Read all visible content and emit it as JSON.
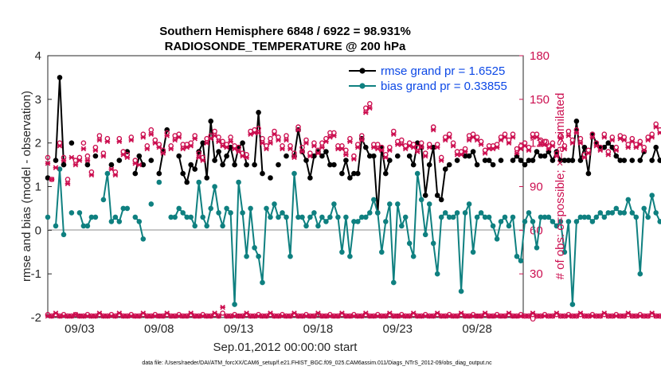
{
  "title_line1": "Southern Hemisphere 6848 / 6922 = 98.931%",
  "title_line2": "RADIOSONDE_TEMPERATURE @ 200 hPa",
  "xlabel": "Sep.01,2012 00:00:00 start",
  "ylabel_left": "rmse and bias (model - observation)",
  "ylabel_right": "# of obs: o=possible; ×=assimilated",
  "footnote": "data file: /Users/raeder/DAI/ATM_forcXX/CAM6_setup/f.e21.FHIST_BGC.f09_025.CAM6assim.011/Diags_NTrS_2012-09/obs_diag_output.nc",
  "legend": {
    "rmse_label": "rmse grand pr = 1.6525",
    "bias_label": "bias grand pr = 0.33855"
  },
  "colors": {
    "rmse": "#000000",
    "bias": "#0f8080",
    "count": "#cc0f50",
    "zero_line": "#b4b4b4"
  },
  "chart_data": {
    "type": "line",
    "x_start_day": 1.0,
    "x_step_days": 0.25,
    "xticks": [
      3,
      8,
      13,
      18,
      23,
      28
    ],
    "xticklabels": [
      "09/03",
      "09/08",
      "09/13",
      "09/18",
      "09/23",
      "09/28"
    ],
    "xlim": [
      1.0,
      30.9
    ],
    "ylim": [
      -2,
      4
    ],
    "yticks": [
      -2,
      -1,
      0,
      1,
      2,
      3,
      4
    ],
    "y2lim": [
      0,
      180
    ],
    "y2ticks": [
      0,
      30,
      60,
      90,
      120,
      150,
      180
    ],
    "series": [
      {
        "name": "rmse grand pr = 1.6525",
        "axis": "left",
        "values": [
          1.2,
          null,
          1.6,
          3.5,
          1.5,
          null,
          2.0,
          null,
          null,
          null,
          1.5,
          null,
          1.7,
          null,
          null,
          null,
          1.5,
          null,
          1.6,
          null,
          1.8,
          null,
          1.3,
          1.7,
          1.5,
          null,
          1.6,
          null,
          1.3,
          1.8,
          2.3,
          null,
          null,
          1.7,
          1.3,
          1.1,
          1.5,
          1.4,
          1.8,
          2.0,
          1.2,
          2.5,
          1.6,
          1.8,
          1.5,
          1.7,
          1.9,
          1.5,
          1.9,
          2.0,
          1.5,
          null,
          1.5,
          2.7,
          1.3,
          null,
          1.2,
          null,
          1.5,
          null,
          1.7,
          null,
          1.7,
          2.3,
          1.8,
          1.6,
          1.2,
          1.7,
          1.8,
          1.7,
          1.8,
          1.5,
          1.5,
          null,
          1.3,
          1.6,
          1.2,
          1.3,
          1.3,
          2.1,
          1.9,
          1.7,
          1.7,
          0.4,
          1.9,
          1.3,
          1.6,
          null,
          1.7,
          null,
          null,
          1.7,
          1.5,
          2.0,
          1.9,
          0.8,
          1.5,
          1.9,
          0.8,
          0.7,
          1.4,
          1.5,
          null,
          1.6,
          null,
          1.7,
          1.7,
          1.8,
          1.5,
          null,
          1.6,
          1.6,
          1.5,
          null,
          1.6,
          null,
          null,
          1.6,
          1.7,
          1.6,
          1.5,
          1.6,
          1.6,
          1.8,
          1.7,
          1.7,
          1.8,
          1.6,
          1.8,
          1.6,
          1.6,
          1.6,
          1.6,
          2.5,
          1.6,
          1.9,
          1.3,
          2.2,
          2.0,
          1.9,
          1.9,
          2.0,
          1.9,
          1.7,
          1.6,
          1.6,
          null,
          1.6,
          null,
          1.6,
          1.8,
          null,
          1.6,
          1.9,
          1.6,
          1.6,
          2.2,
          1.6,
          1.6,
          2.0,
          2.0,
          1.9,
          1.6,
          2.3,
          1.6,
          1.6,
          1.9,
          1.7,
          1.6,
          1.6,
          2.0,
          1.6,
          1.6,
          1.6,
          1.6,
          1.7,
          2.0,
          1.8,
          1.9,
          1.6,
          1.9,
          1.9,
          2.0,
          1.9,
          1.8,
          2.0,
          1.9,
          2.0,
          2.0,
          1.9,
          2.0,
          2.0,
          1.9,
          1.9,
          1.6,
          1.6
        ]
      },
      {
        "name": "bias grand pr = 0.33855",
        "axis": "left",
        "values": [
          0.3,
          null,
          0.1,
          1.4,
          -0.1,
          null,
          0.4,
          null,
          0.4,
          0.1,
          0.1,
          0.3,
          0.3,
          null,
          0.7,
          1.3,
          0.2,
          0.3,
          0.2,
          0.5,
          0.5,
          null,
          0.3,
          0.2,
          -0.2,
          null,
          0.6,
          null,
          1.1,
          null,
          null,
          0.3,
          0.3,
          0.5,
          0.4,
          0.3,
          0.3,
          0.1,
          1.1,
          0.3,
          0.1,
          0.5,
          1.0,
          0.4,
          0.1,
          0.5,
          0.4,
          -1.7,
          1.1,
          0.4,
          -0.6,
          0.5,
          -0.4,
          -0.6,
          -1.2,
          0.5,
          0.3,
          0.6,
          0.3,
          0.4,
          0.3,
          -0.6,
          1.3,
          0.3,
          0.3,
          0.1,
          0.3,
          0.4,
          0.1,
          0.3,
          0.2,
          0.3,
          0.6,
          0.3,
          -0.5,
          0.3,
          -0.6,
          0.2,
          0.2,
          0.3,
          0.3,
          0.4,
          0.7,
          0.4,
          -0.5,
          0.2,
          0.6,
          -1.2,
          0.6,
          0.1,
          0.3,
          -0.3,
          -0.6,
          1.3,
          0.7,
          -0.1,
          0.6,
          -0.3,
          -1.0,
          0.3,
          0.4,
          0.3,
          0.3,
          0.4,
          -1.4,
          0.4,
          0.6,
          -0.5,
          0.3,
          0.4,
          0.3,
          0.3,
          0.1,
          -0.2,
          0.2,
          0.3,
          0.1,
          0.3,
          -0.6,
          -0.7,
          0.2,
          0.4,
          0.2,
          -0.4,
          0.3,
          0.3,
          0.3,
          0.2,
          0.1,
          0.2,
          -0.5,
          0.2,
          -1.7,
          0.2,
          0.3,
          0.3,
          0.3,
          0.2,
          0.3,
          0.4,
          0.3,
          0.4,
          0.4,
          0.5,
          0.4,
          0.4,
          0.7,
          0.4,
          0.3,
          -1.0,
          0.5,
          0.3,
          0.8,
          0.4,
          0.2,
          0.3,
          0.3,
          0.1,
          0.6,
          0.7,
          0.8,
          0.6,
          0.2,
          0.2,
          0.3,
          0.2,
          0.3,
          0.4,
          0.3,
          0.6,
          0.4,
          0.6,
          0.3,
          0.1,
          0.3,
          0.3,
          0.3,
          0.2,
          0.3,
          0.4,
          0.4,
          0.2,
          0.4,
          0.5,
          0.3,
          0.4,
          0.8,
          0.6,
          0.2,
          0.2,
          0.2,
          0.2,
          0.8,
          0.4,
          0.2,
          0.2,
          0.2,
          0.2,
          0.3,
          0.2,
          0.1,
          0.2
        ]
      },
      {
        "name": "",
        "axis": "right",
        "marker": "o",
        "values": [
          110,
          95,
          null,
          120,
          110,
          95,
          null,
          108,
          110,
          120,
          111,
          100,
          117,
          125,
          113,
          123,
          null,
          100,
          123,
          114,
          112,
          124,
          108,
          null,
          126,
          118,
          129,
          122,
          119,
          115,
          127,
          118,
          125,
          126,
          119,
          119,
          120,
          125,
          113,
          110,
          123,
          125,
          128,
          124,
          121,
          119,
          124,
          118,
          117,
          113,
          112,
          128,
          129,
          130,
          123,
          118,
          123,
          128,
          124,
          118,
          125,
          118,
          113,
          131,
          117,
          122,
          113,
          120,
          115,
          120,
          123,
          127,
          127,
          118,
          118,
          115,
          123,
          111,
          119,
          125,
          144,
          147,
          119,
          119,
          117,
          112,
          117,
          128,
          121,
          122,
          118,
          120,
          119,
          117,
          120,
          113,
          119,
          131,
          119,
          110,
          124,
          126,
          120,
          114,
          114,
          116,
          125,
          126,
          124,
          121,
          115,
          118,
          118,
          119,
          124,
          126,
          122,
          126,
          116,
          118,
          120,
          117,
          126,
          126,
          122,
          121,
          118,
          120,
          113,
          125,
          118,
          128,
          122,
          129,
          123,
          112,
          115,
          126,
          120,
          117,
          126,
          114,
          124,
          117,
          125,
          124,
          119,
          123,
          119,
          121,
          117,
          124,
          126,
          133,
          129,
          132,
          118,
          123,
          129,
          126,
          118,
          128,
          120,
          137,
          119,
          124,
          119,
          123,
          126,
          123,
          118,
          124,
          115,
          126,
          126,
          124,
          128,
          126,
          117,
          113,
          114,
          119,
          122,
          122,
          115,
          116,
          119,
          121,
          122,
          117,
          115,
          115,
          112,
          114,
          119,
          111,
          115
        ]
      },
      {
        "name": "",
        "axis": "right",
        "marker": "x",
        "values": [
          106,
          95,
          103,
          118,
          108,
          92,
          110,
          105,
          108,
          116,
          108,
          98,
          115,
          122,
          111,
          121,
          102,
          98,
          121,
          112,
          110,
          122,
          106,
          105,
          124,
          116,
          126,
          120,
          117,
          113,
          125,
          116,
          122,
          124,
          116,
          117,
          118,
          123,
          110,
          108,
          120,
          123,
          125,
          121,
          118,
          117,
          121,
          116,
          114,
          111,
          110,
          126,
          127,
          127,
          120,
          116,
          120,
          126,
          122,
          116,
          122,
          116,
          110,
          129,
          114,
          120,
          111,
          118,
          113,
          117,
          121,
          124,
          125,
          116,
          116,
          112,
          121,
          109,
          117,
          122,
          141,
          144,
          117,
          116,
          115,
          110,
          115,
          126,
          119,
          119,
          116,
          118,
          117,
          114,
          117,
          111,
          117,
          129,
          117,
          108,
          122,
          124,
          118,
          112,
          112,
          114,
          122,
          124,
          122,
          119,
          113,
          116,
          116,
          117,
          122,
          124,
          120,
          124,
          113,
          116,
          118,
          115,
          124,
          124,
          119,
          119,
          116,
          118,
          111,
          123,
          116,
          125,
          120,
          127,
          120,
          110,
          113,
          124,
          118,
          115,
          124,
          112,
          122,
          115,
          123,
          122,
          117,
          121,
          117,
          119,
          115,
          122,
          124,
          131,
          127,
          130,
          116,
          121,
          127,
          124,
          116,
          126,
          118,
          135,
          117,
          122,
          117,
          121,
          124,
          121,
          116,
          122,
          112,
          124,
          124,
          122,
          126,
          124,
          115,
          110,
          111,
          117,
          120,
          119,
          112,
          113,
          117,
          119,
          120,
          115,
          112,
          112,
          110,
          112,
          117,
          109,
          112
        ]
      },
      {
        "name": "",
        "axis": "right",
        "marker": "o",
        "values": [
          2,
          1,
          2,
          1,
          2,
          1,
          1,
          2,
          1,
          1,
          2,
          1,
          1,
          2,
          1,
          1,
          2,
          1,
          2,
          1,
          1,
          2,
          1,
          1,
          2,
          1,
          1,
          2,
          1,
          1,
          2,
          1,
          1,
          2,
          1,
          1,
          2,
          1,
          1,
          2,
          1,
          1,
          2,
          1,
          3,
          1,
          1,
          2,
          1,
          1,
          2,
          1,
          1,
          2,
          1,
          1,
          2,
          1,
          1,
          2,
          1,
          1,
          2,
          1,
          1,
          2,
          1,
          1,
          2,
          1,
          1,
          2,
          1,
          1,
          2,
          1,
          1,
          2,
          1,
          1,
          2,
          1,
          1,
          2,
          1,
          1,
          2,
          1,
          1,
          2,
          1,
          1,
          2,
          1,
          1,
          2,
          1,
          1,
          2,
          1,
          1,
          2,
          1,
          1,
          2,
          1,
          1,
          2,
          1,
          1,
          2,
          1,
          1,
          2,
          1,
          1,
          2,
          1,
          1,
          2,
          1,
          1,
          2,
          1,
          1,
          2,
          1,
          1,
          2,
          1,
          1,
          2,
          1,
          1,
          2,
          1,
          1,
          2,
          1,
          1,
          2,
          1,
          1,
          2,
          1,
          1,
          2,
          1,
          1,
          2,
          1,
          1,
          2,
          1,
          1,
          2,
          1,
          1,
          2,
          1,
          1,
          2,
          1,
          1,
          2,
          1,
          1,
          2,
          1,
          1,
          2,
          1,
          1,
          2,
          1,
          1,
          2,
          1,
          1,
          2,
          1,
          1,
          2,
          1,
          1,
          2,
          1,
          1,
          2,
          1,
          1,
          2,
          1,
          1,
          2,
          1,
          1,
          2,
          1,
          1,
          2
        ]
      },
      {
        "name": "",
        "axis": "right",
        "marker": "x",
        "values": [
          1,
          1,
          3,
          1,
          1,
          1,
          1,
          2,
          1,
          1,
          1,
          1,
          1,
          3,
          1,
          1,
          1,
          1,
          3,
          1,
          1,
          1,
          1,
          1,
          3,
          1,
          1,
          1,
          1,
          1,
          3,
          1,
          1,
          1,
          1,
          1,
          3,
          1,
          1,
          1,
          1,
          1,
          3,
          1,
          7,
          1,
          1,
          1,
          1,
          1,
          3,
          1,
          1,
          1,
          1,
          1,
          3,
          1,
          1,
          1,
          1,
          1,
          3,
          1,
          1,
          1,
          1,
          1,
          3,
          1,
          1,
          1,
          1,
          1,
          3,
          1,
          1,
          1,
          1,
          1,
          3,
          1,
          1,
          1,
          1,
          1,
          3,
          1,
          1,
          1,
          1,
          1,
          3,
          1,
          1,
          1,
          1,
          1,
          3,
          1,
          1,
          1,
          1,
          1,
          3,
          1,
          1,
          1,
          1,
          1,
          3,
          1,
          1,
          1,
          1,
          1,
          3,
          1,
          1,
          1,
          1,
          1,
          3,
          1,
          1,
          1,
          1,
          1,
          3,
          1,
          1,
          1,
          1,
          1,
          3,
          1,
          1,
          1,
          1,
          1,
          3,
          1,
          1,
          1,
          1,
          1,
          3,
          1,
          1,
          1,
          1,
          1,
          3,
          1,
          1,
          1,
          1,
          1,
          3,
          1,
          1,
          1,
          1,
          1,
          3,
          1,
          1,
          1,
          1,
          1,
          3,
          1,
          1,
          1,
          1,
          1,
          3,
          1,
          8,
          1,
          1,
          1,
          3,
          1,
          1,
          1,
          1,
          1,
          3,
          1,
          1,
          1,
          1,
          1,
          3,
          1,
          1,
          1,
          1,
          1,
          3
        ]
      }
    ]
  }
}
